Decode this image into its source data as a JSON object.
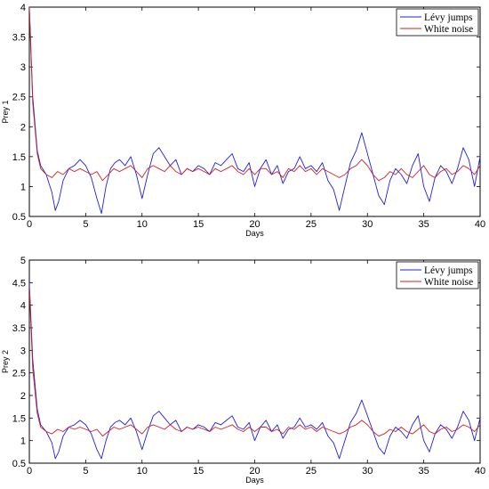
{
  "chart_data": [
    {
      "type": "line",
      "xlabel": "Days",
      "ylabel": "Prey 1",
      "xlim": [
        0,
        40
      ],
      "ylim": [
        0.5,
        4
      ],
      "xticks": [
        "0",
        "5",
        "10",
        "15",
        "20",
        "25",
        "30",
        "35",
        "40"
      ],
      "yticks": [
        "0.5",
        "1",
        "1.5",
        "2",
        "2.5",
        "3",
        "3.5",
        "4"
      ],
      "legend_position": "top-right",
      "series": [
        {
          "name": "Lévy jumps",
          "color": "#1f1fe0",
          "x": [
            0,
            0.3,
            0.7,
            1,
            1.5,
            2,
            2.3,
            2.6,
            3,
            3.5,
            4,
            4.5,
            5,
            5.5,
            6,
            6.4,
            6.8,
            7.2,
            7.6,
            8,
            8.5,
            9,
            9.5,
            10,
            10.5,
            11,
            11.5,
            12,
            12.5,
            13,
            13.5,
            14,
            14.5,
            15,
            15.5,
            16,
            16.5,
            17,
            17.5,
            18,
            18.5,
            19,
            19.5,
            20,
            20.5,
            21,
            21.5,
            22,
            22.5,
            23,
            23.5,
            24,
            24.5,
            25,
            25.5,
            26,
            26.5,
            27,
            27.5,
            28,
            28.5,
            29,
            29.5,
            30,
            30.5,
            31,
            31.5,
            32,
            32.5,
            33,
            33.5,
            34,
            34.5,
            35,
            35.5,
            36,
            36.5,
            37,
            37.5,
            38,
            38.5,
            39,
            39.5,
            40
          ],
          "y": [
            4,
            2.5,
            1.6,
            1.35,
            1.2,
            0.9,
            0.6,
            0.75,
            1.1,
            1.3,
            1.35,
            1.45,
            1.35,
            1.15,
            0.8,
            0.55,
            1.0,
            1.3,
            1.4,
            1.45,
            1.35,
            1.5,
            1.2,
            0.8,
            1.2,
            1.55,
            1.65,
            1.5,
            1.35,
            1.45,
            1.2,
            1.3,
            1.25,
            1.35,
            1.3,
            1.2,
            1.4,
            1.35,
            1.45,
            1.55,
            1.3,
            1.25,
            1.4,
            1.0,
            1.3,
            1.45,
            1.2,
            1.35,
            1.05,
            1.25,
            1.3,
            1.5,
            1.3,
            1.35,
            1.25,
            1.4,
            1.1,
            0.95,
            0.6,
            1.0,
            1.4,
            1.6,
            1.9,
            1.55,
            1.2,
            0.85,
            0.7,
            1.1,
            1.3,
            1.2,
            1.05,
            1.35,
            1.55,
            1.0,
            0.75,
            1.15,
            1.35,
            1.25,
            1.05,
            1.3,
            1.65,
            1.45,
            1.0,
            1.5
          ]
        },
        {
          "name": "White noise",
          "color": "#d02020",
          "x": [
            0,
            0.3,
            0.7,
            1,
            1.5,
            2,
            2.5,
            3,
            3.5,
            4,
            4.5,
            5,
            5.5,
            6,
            6.5,
            7,
            7.5,
            8,
            8.5,
            9,
            9.5,
            10,
            10.5,
            11,
            11.5,
            12,
            12.5,
            13,
            13.5,
            14,
            14.5,
            15,
            15.5,
            16,
            16.5,
            17,
            17.5,
            18,
            18.5,
            19,
            19.5,
            20,
            20.5,
            21,
            21.5,
            22,
            22.5,
            23,
            23.5,
            24,
            24.5,
            25,
            25.5,
            26,
            26.5,
            27,
            27.5,
            28,
            28.5,
            29,
            29.5,
            30,
            30.5,
            31,
            31.5,
            32,
            32.5,
            33,
            33.5,
            34,
            34.5,
            35,
            35.5,
            36,
            36.5,
            37,
            37.5,
            38,
            38.5,
            39,
            39.5,
            40
          ],
          "y": [
            4,
            2.4,
            1.55,
            1.3,
            1.2,
            1.15,
            1.25,
            1.2,
            1.3,
            1.25,
            1.3,
            1.25,
            1.2,
            1.25,
            1.1,
            1.2,
            1.3,
            1.25,
            1.3,
            1.35,
            1.25,
            1.15,
            1.3,
            1.35,
            1.3,
            1.25,
            1.35,
            1.25,
            1.2,
            1.3,
            1.25,
            1.3,
            1.25,
            1.2,
            1.3,
            1.25,
            1.3,
            1.35,
            1.25,
            1.2,
            1.3,
            1.2,
            1.3,
            1.3,
            1.2,
            1.25,
            1.15,
            1.3,
            1.25,
            1.35,
            1.25,
            1.3,
            1.2,
            1.3,
            1.25,
            1.2,
            1.15,
            1.2,
            1.3,
            1.35,
            1.45,
            1.35,
            1.2,
            1.1,
            1.15,
            1.25,
            1.2,
            1.3,
            1.2,
            1.15,
            1.25,
            1.35,
            1.2,
            1.15,
            1.25,
            1.3,
            1.2,
            1.25,
            1.35,
            1.3,
            1.2,
            1.35
          ]
        }
      ]
    },
    {
      "type": "line",
      "xlabel": "Days",
      "ylabel": "Prey 2",
      "xlim": [
        0,
        40
      ],
      "ylim": [
        0.5,
        5
      ],
      "xticks": [
        "0",
        "5",
        "10",
        "15",
        "20",
        "25",
        "30",
        "35",
        "40"
      ],
      "yticks": [
        "0.5",
        "1",
        "1.5",
        "2",
        "2.5",
        "3",
        "3.5",
        "4",
        "4.5",
        "5"
      ],
      "legend_position": "top-right",
      "series": [
        {
          "name": "Lévy jumps",
          "color": "#1f1fe0",
          "x": [
            0,
            0.3,
            0.7,
            1,
            1.5,
            2,
            2.3,
            2.6,
            3,
            3.5,
            4,
            4.5,
            5,
            5.5,
            6,
            6.4,
            6.8,
            7.2,
            7.6,
            8,
            8.5,
            9,
            9.5,
            10,
            10.5,
            11,
            11.5,
            12,
            12.5,
            13,
            13.5,
            14,
            14.5,
            15,
            15.5,
            16,
            16.5,
            17,
            17.5,
            18,
            18.5,
            19,
            19.5,
            20,
            20.5,
            21,
            21.5,
            22,
            22.5,
            23,
            23.5,
            24,
            24.5,
            25,
            25.5,
            26,
            26.5,
            27,
            27.5,
            28,
            28.5,
            29,
            29.5,
            30,
            30.5,
            31,
            31.5,
            32,
            32.5,
            33,
            33.5,
            34,
            34.5,
            35,
            35.5,
            36,
            36.5,
            37,
            37.5,
            38,
            38.5,
            39,
            39.5,
            40
          ],
          "y": [
            4.5,
            2.8,
            1.7,
            1.35,
            1.2,
            0.95,
            0.6,
            0.75,
            1.1,
            1.3,
            1.35,
            1.45,
            1.35,
            1.15,
            0.8,
            0.6,
            1.0,
            1.3,
            1.4,
            1.45,
            1.35,
            1.5,
            1.2,
            0.8,
            1.2,
            1.55,
            1.65,
            1.5,
            1.35,
            1.45,
            1.2,
            1.3,
            1.25,
            1.35,
            1.3,
            1.2,
            1.4,
            1.35,
            1.45,
            1.55,
            1.3,
            1.25,
            1.4,
            1.0,
            1.3,
            1.45,
            1.2,
            1.35,
            1.05,
            1.25,
            1.3,
            1.5,
            1.3,
            1.35,
            1.25,
            1.4,
            1.1,
            0.95,
            0.6,
            1.0,
            1.4,
            1.6,
            1.9,
            1.55,
            1.2,
            0.85,
            0.7,
            1.1,
            1.3,
            1.2,
            1.05,
            1.35,
            1.55,
            1.0,
            0.75,
            1.15,
            1.35,
            1.25,
            1.05,
            1.3,
            1.65,
            1.45,
            1.0,
            1.5
          ]
        },
        {
          "name": "White noise",
          "color": "#d02020",
          "x": [
            0,
            0.3,
            0.7,
            1,
            1.5,
            2,
            2.5,
            3,
            3.5,
            4,
            4.5,
            5,
            5.5,
            6,
            6.5,
            7,
            7.5,
            8,
            8.5,
            9,
            9.5,
            10,
            10.5,
            11,
            11.5,
            12,
            12.5,
            13,
            13.5,
            14,
            14.5,
            15,
            15.5,
            16,
            16.5,
            17,
            17.5,
            18,
            18.5,
            19,
            19.5,
            20,
            20.5,
            21,
            21.5,
            22,
            22.5,
            23,
            23.5,
            24,
            24.5,
            25,
            25.5,
            26,
            26.5,
            27,
            27.5,
            28,
            28.5,
            29,
            29.5,
            30,
            30.5,
            31,
            31.5,
            32,
            32.5,
            33,
            33.5,
            34,
            34.5,
            35,
            35.5,
            36,
            36.5,
            37,
            37.5,
            38,
            38.5,
            39,
            39.5,
            40
          ],
          "y": [
            4.4,
            2.6,
            1.6,
            1.3,
            1.2,
            1.15,
            1.25,
            1.2,
            1.3,
            1.25,
            1.3,
            1.25,
            1.2,
            1.25,
            1.1,
            1.2,
            1.3,
            1.25,
            1.3,
            1.35,
            1.25,
            1.15,
            1.3,
            1.35,
            1.3,
            1.25,
            1.35,
            1.25,
            1.2,
            1.3,
            1.25,
            1.3,
            1.25,
            1.2,
            1.3,
            1.25,
            1.3,
            1.35,
            1.25,
            1.2,
            1.3,
            1.2,
            1.3,
            1.3,
            1.2,
            1.25,
            1.15,
            1.3,
            1.25,
            1.35,
            1.25,
            1.3,
            1.2,
            1.3,
            1.25,
            1.2,
            1.15,
            1.2,
            1.3,
            1.35,
            1.45,
            1.35,
            1.2,
            1.1,
            1.15,
            1.25,
            1.2,
            1.3,
            1.2,
            1.15,
            1.25,
            1.35,
            1.2,
            1.15,
            1.25,
            1.3,
            1.2,
            1.25,
            1.35,
            1.3,
            1.2,
            1.35
          ]
        }
      ]
    }
  ]
}
